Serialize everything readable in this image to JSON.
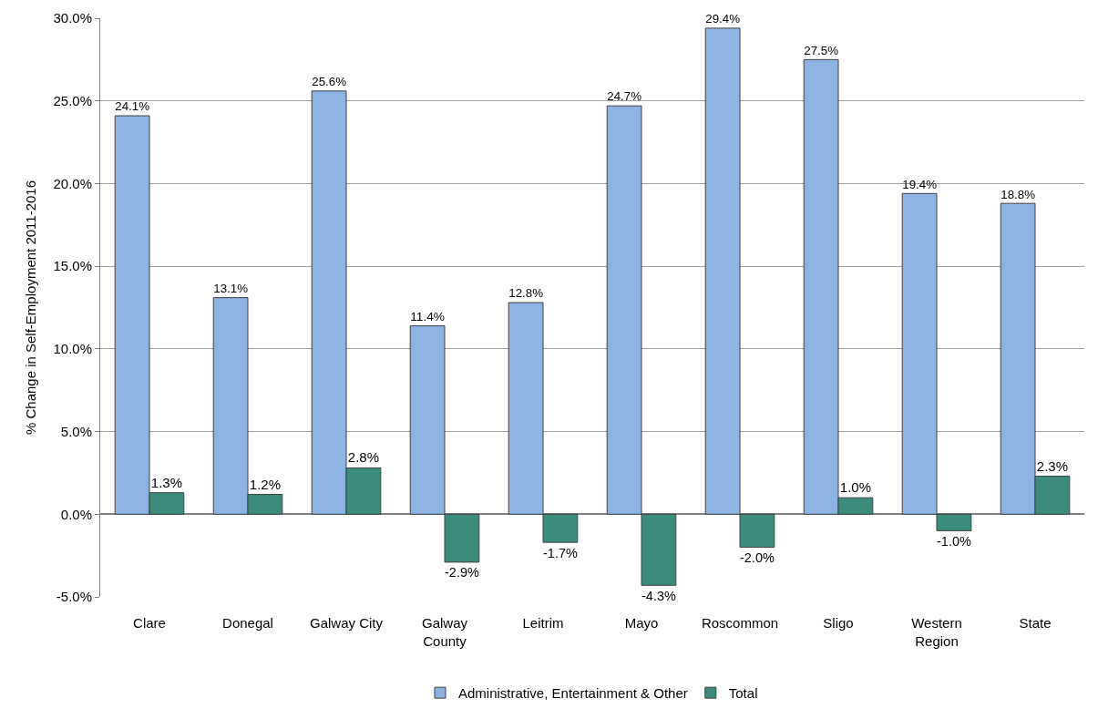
{
  "chart_data": {
    "type": "bar",
    "ylabel": "% Change in Self-Employment 2011-2016",
    "categories": [
      "Clare",
      "Donegal",
      "Galway City",
      "Galway County",
      "Leitrim",
      "Mayo",
      "Roscommon",
      "Sligo",
      "Western Region",
      "State"
    ],
    "series": [
      {
        "name": "Administrative, Entertainment & Other",
        "color": "#8db3e2",
        "values": [
          24.1,
          13.1,
          25.6,
          11.4,
          12.8,
          24.7,
          29.4,
          27.5,
          19.4,
          18.8
        ],
        "value_labels": [
          "24.1%",
          "13.1%",
          "25.6%",
          "11.4%",
          "12.8%",
          "24.7%",
          "29.4%",
          "27.5%",
          "19.4%",
          "18.8%"
        ]
      },
      {
        "name": "Total",
        "color": "#3b8c7c",
        "values": [
          1.3,
          1.2,
          2.8,
          -2.9,
          -1.7,
          -4.3,
          -2.0,
          1.0,
          -1.0,
          2.3
        ],
        "value_labels": [
          "1.3%",
          "1.2%",
          "2.8%",
          "-2.9%",
          "-1.7%",
          "-4.3%",
          "-2.0%",
          "1.0%",
          "-1.0%",
          "2.3%"
        ]
      }
    ],
    "ylim": [
      -5,
      30
    ],
    "yticks": [
      {
        "value": -5,
        "label": "-5.0%"
      },
      {
        "value": 0,
        "label": "0.0%"
      },
      {
        "value": 5,
        "label": "5.0%"
      },
      {
        "value": 10,
        "label": "10.0%"
      },
      {
        "value": 15,
        "label": "15.0%"
      },
      {
        "value": 20,
        "label": "20.0%"
      },
      {
        "value": 25,
        "label": "25.0%"
      },
      {
        "value": 30,
        "label": "30.0%"
      }
    ],
    "grid": "y",
    "legend": "bottom"
  }
}
